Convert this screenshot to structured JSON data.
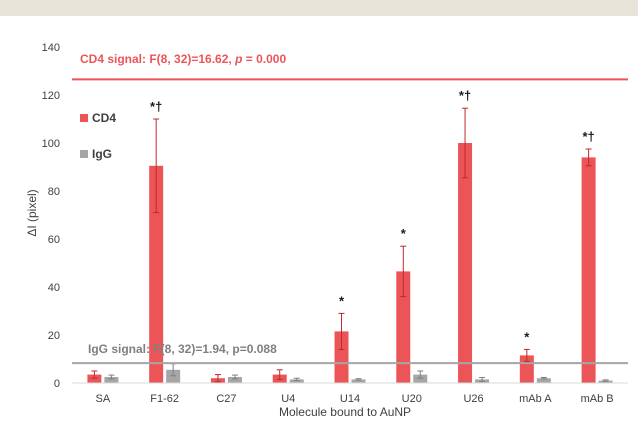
{
  "chart_data": {
    "type": "bar",
    "categories": [
      "SA",
      "F1-62",
      "C27",
      "U4",
      "U14",
      "U20",
      "U26",
      "mAb A",
      "mAb B"
    ],
    "series": [
      {
        "name": "CD4",
        "color": "#ec5558",
        "values": [
          3.5,
          90.5,
          2.0,
          3.5,
          21.5,
          46.5,
          100.0,
          11.5,
          94.0
        ],
        "errors": [
          1.5,
          19.5,
          1.5,
          2.0,
          7.5,
          10.5,
          14.5,
          2.5,
          3.5
        ],
        "significance": [
          "",
          "*†",
          "",
          "",
          "*",
          "*",
          "*†",
          "*",
          "*†"
        ]
      },
      {
        "name": "IgG",
        "color": "#a6a6a6",
        "values": [
          2.5,
          5.5,
          2.5,
          1.5,
          1.5,
          3.5,
          1.5,
          2.0,
          1.0
        ],
        "errors": [
          0.8,
          2.5,
          0.8,
          0.5,
          0.3,
          1.5,
          0.8,
          0.3,
          0.3
        ]
      }
    ],
    "xlabel": "Molecule bound to AuNP",
    "ylabel": "ΔI (pixel)",
    "ylim": [
      0,
      140
    ],
    "yticks": [
      0,
      20,
      40,
      60,
      80,
      100,
      120,
      140
    ],
    "reference_lines": [
      {
        "label": "CD4 signal: F(8, 32)=16.62, p = 0.000",
        "value": 126.5,
        "color": "#ec5558"
      },
      {
        "label": "IgG signal: F(8, 32)=1.94, p=0.088",
        "value": 8.3,
        "color": "#a6a6a6"
      }
    ],
    "legend_position": "left",
    "grid": false
  },
  "text": {
    "cd4_signal_prefix": "CD4 signal: F(8, 32)=16.62, ",
    "cd4_signal_p": "p",
    "cd4_signal_suffix": " = 0.000",
    "igg_signal": "IgG signal: F(8, 32)=1.94, p=0.088"
  }
}
